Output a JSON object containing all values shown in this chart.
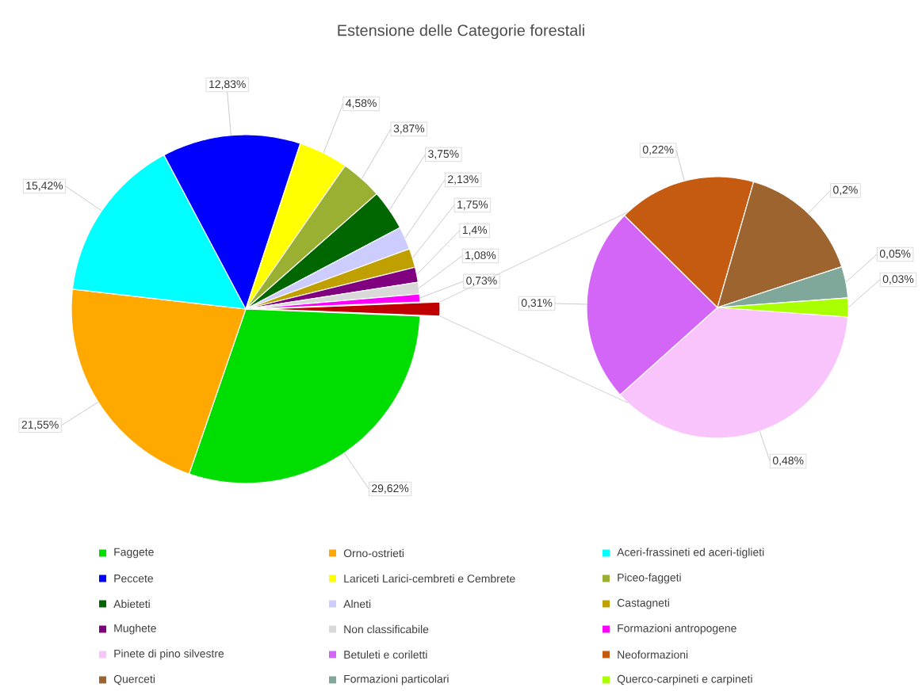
{
  "chart_data": [
    {
      "type": "pie",
      "title": "Estensione delle Categorie forestali",
      "legend": "bottom",
      "categories": [
        "Faggete",
        "Orno-ostrieti",
        "Aceri-frassineti ed aceri-tiglieti",
        "Peccete",
        "Lariceti Larici-cembreti e Cembrete",
        "Piceo-faggeti",
        "Abieteti",
        "Alneti",
        "Castagneti",
        "Mughete",
        "Non classificabile",
        "Formazioni antropogene",
        null
      ],
      "values": [
        29.62,
        21.55,
        15.42,
        12.83,
        4.58,
        3.87,
        3.75,
        2.13,
        1.75,
        1.4,
        1.08,
        0.73,
        1.29
      ],
      "colors": [
        "#00dd00",
        "#ffa800",
        "#00ffff",
        "#0000ff",
        "#ffff00",
        "#99b033",
        "#006600",
        "#ccccff",
        "#c0a000",
        "#800080",
        "#d9d9d9",
        "#ff00ff",
        "#c00000"
      ],
      "value_labels": [
        "29,62%",
        "21,55%",
        "15,42%",
        "12,83%",
        "4,58%",
        "3,87%",
        "3,75%",
        "2,13%",
        "1,75%",
        "1,4%",
        "1,08%",
        "0,73%",
        null
      ]
    },
    {
      "type": "pie",
      "legend": "bottom",
      "categories": [
        "Pinete di pino silvestre",
        "Betuleti e coriletti",
        "Neoformazioni",
        "Querceti",
        "Formazioni particolari",
        "Querco-carpineti e carpineti"
      ],
      "values": [
        0.48,
        0.31,
        0.22,
        0.2,
        0.05,
        0.03
      ],
      "colors": [
        "#f8c4fb",
        "#d466f7",
        "#c55a11",
        "#9e6430",
        "#7fa89a",
        "#aaff00"
      ],
      "value_labels": [
        "0,48%",
        "0,31%",
        "0,22%",
        "0,2%",
        "0,05%",
        "0,03%"
      ]
    }
  ]
}
